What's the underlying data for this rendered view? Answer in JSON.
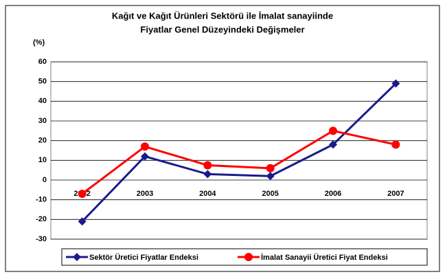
{
  "chart_data": {
    "type": "line",
    "title": [
      "Kağıt ve Kağıt Ürünleri Sektörü ile İmalat sanayiinde",
      "Fiyatlar Genel Düzeyindeki Değişmeler"
    ],
    "y_label": "(%)",
    "categories": [
      "2002",
      "2003",
      "2004",
      "2005",
      "2006",
      "2007"
    ],
    "series": [
      {
        "name": "Sektör Üretici Fiyatlar Endeksi",
        "color": "#1a1a8c",
        "marker": "diamond",
        "values": [
          -21,
          12,
          3,
          2,
          18,
          49
        ]
      },
      {
        "name": "İmalat Sanayii Üretici Fiyat Endeksi",
        "color": "#ff0000",
        "marker": "circle",
        "values": [
          -7,
          17,
          7.5,
          6,
          25,
          18
        ]
      }
    ],
    "ylim": [
      -30,
      60
    ],
    "yticks": [
      -30,
      -20,
      -10,
      0,
      10,
      20,
      30,
      40,
      50,
      60
    ],
    "grid": true,
    "legend": "bottom"
  }
}
